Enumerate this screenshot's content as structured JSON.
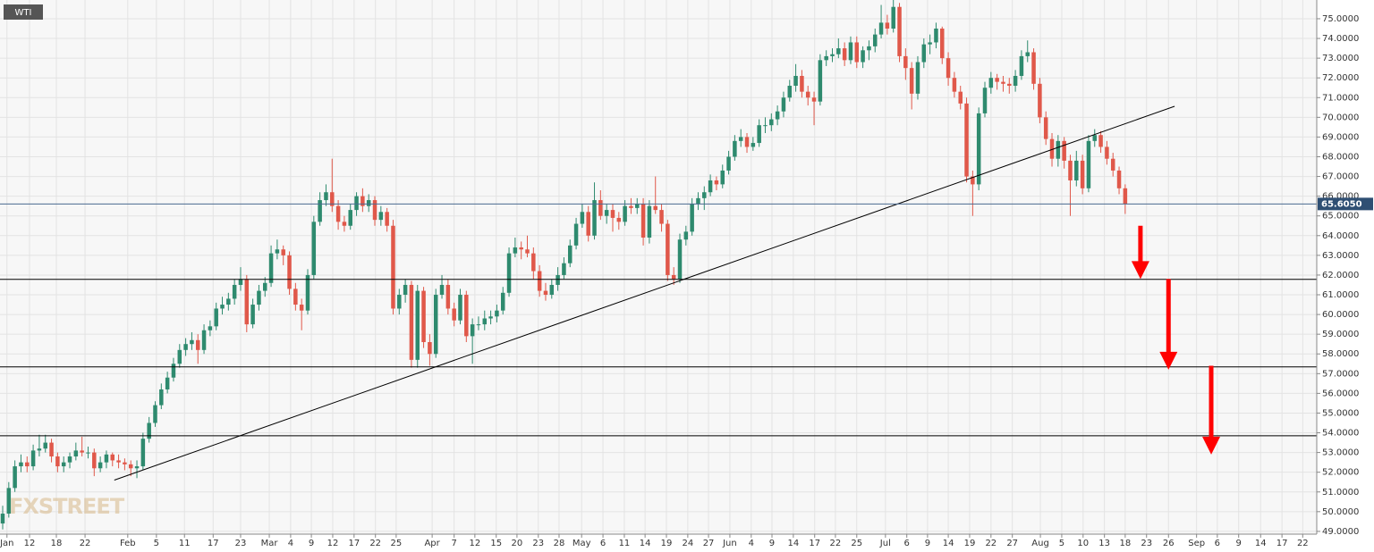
{
  "chart_data": {
    "type": "candlestick",
    "title": "WTI",
    "watermark": "FXSTREET",
    "up_color": "#2e8a6e",
    "down_color": "#e0584a",
    "grid": true,
    "xlim": [
      -0.44,
      215.4
    ],
    "ylim": [
      48.86,
      75.95
    ],
    "yticks": [
      {
        "value": 49,
        "label": "49.0000"
      },
      {
        "value": 50,
        "label": "50.0000"
      },
      {
        "value": 51,
        "label": "51.0000"
      },
      {
        "value": 52,
        "label": "52.0000"
      },
      {
        "value": 53,
        "label": "53.0000"
      },
      {
        "value": 54,
        "label": "54.0000"
      },
      {
        "value": 55,
        "label": "55.0000"
      },
      {
        "value": 56,
        "label": "56.0000"
      },
      {
        "value": 57,
        "label": "57.0000"
      },
      {
        "value": 58,
        "label": "58.0000"
      },
      {
        "value": 59,
        "label": "59.0000"
      },
      {
        "value": 60,
        "label": "60.0000"
      },
      {
        "value": 61,
        "label": "61.0000"
      },
      {
        "value": 62,
        "label": "62.0000"
      },
      {
        "value": 63,
        "label": "63.0000"
      },
      {
        "value": 64,
        "label": "64.0000"
      },
      {
        "value": 65,
        "label": "65.0000"
      },
      {
        "value": 66,
        "label": "66.0000"
      },
      {
        "value": 67,
        "label": "67.0000"
      },
      {
        "value": 68,
        "label": "68.0000"
      },
      {
        "value": 69,
        "label": "69.0000"
      },
      {
        "value": 70,
        "label": "70.0000"
      },
      {
        "value": 71,
        "label": "71.0000"
      },
      {
        "value": 72,
        "label": "72.0000"
      },
      {
        "value": 73,
        "label": "73.0000"
      },
      {
        "value": 74,
        "label": "74.0000"
      },
      {
        "value": 75,
        "label": "75.0000"
      }
    ],
    "xticks": [
      {
        "value": 0.7,
        "label": "Jan"
      },
      {
        "value": 4.4,
        "label": "12"
      },
      {
        "value": 8.8,
        "label": "18"
      },
      {
        "value": 13.5,
        "label": "22"
      },
      {
        "value": 20.5,
        "label": "Feb"
      },
      {
        "value": 25.2,
        "label": "5"
      },
      {
        "value": 29.8,
        "label": "11"
      },
      {
        "value": 34.5,
        "label": "17"
      },
      {
        "value": 39.0,
        "label": "23"
      },
      {
        "value": 43.7,
        "label": "Mar"
      },
      {
        "value": 47.2,
        "label": "4"
      },
      {
        "value": 50.6,
        "label": "9"
      },
      {
        "value": 54.1,
        "label": "12"
      },
      {
        "value": 57.6,
        "label": "17"
      },
      {
        "value": 61.1,
        "label": "22"
      },
      {
        "value": 64.5,
        "label": "25"
      },
      {
        "value": 70.4,
        "label": "Apr"
      },
      {
        "value": 74.0,
        "label": "7"
      },
      {
        "value": 77.4,
        "label": "12"
      },
      {
        "value": 80.9,
        "label": "15"
      },
      {
        "value": 84.3,
        "label": "20"
      },
      {
        "value": 87.8,
        "label": "23"
      },
      {
        "value": 91.2,
        "label": "28"
      },
      {
        "value": 94.9,
        "label": "May"
      },
      {
        "value": 98.4,
        "label": "6"
      },
      {
        "value": 101.9,
        "label": "11"
      },
      {
        "value": 105.3,
        "label": "14"
      },
      {
        "value": 108.8,
        "label": "19"
      },
      {
        "value": 112.3,
        "label": "24"
      },
      {
        "value": 115.7,
        "label": "27"
      },
      {
        "value": 119.2,
        "label": "Jun"
      },
      {
        "value": 122.7,
        "label": "4"
      },
      {
        "value": 126.1,
        "label": "9"
      },
      {
        "value": 129.6,
        "label": "14"
      },
      {
        "value": 133.1,
        "label": "17"
      },
      {
        "value": 136.5,
        "label": "22"
      },
      {
        "value": 140.0,
        "label": "25"
      },
      {
        "value": 144.7,
        "label": "Jul"
      },
      {
        "value": 148.2,
        "label": "6"
      },
      {
        "value": 151.6,
        "label": "9"
      },
      {
        "value": 155.0,
        "label": "14"
      },
      {
        "value": 158.5,
        "label": "19"
      },
      {
        "value": 162.0,
        "label": "22"
      },
      {
        "value": 165.5,
        "label": "27"
      },
      {
        "value": 170.1,
        "label": "Aug"
      },
      {
        "value": 173.6,
        "label": "5"
      },
      {
        "value": 177.1,
        "label": "10"
      },
      {
        "value": 180.6,
        "label": "13"
      },
      {
        "value": 184.0,
        "label": "18"
      },
      {
        "value": 187.5,
        "label": "23"
      },
      {
        "value": 191.1,
        "label": "26"
      },
      {
        "value": 195.7,
        "label": "Sep"
      },
      {
        "value": 199.1,
        "label": "6"
      },
      {
        "value": 202.6,
        "label": "9"
      },
      {
        "value": 206.2,
        "label": "14"
      },
      {
        "value": 209.7,
        "label": "17"
      },
      {
        "value": 213.1,
        "label": "22"
      }
    ],
    "last_price": {
      "value": 65.605,
      "label": "65.6050"
    },
    "levels": [
      61.78,
      57.34,
      53.85
    ],
    "trendline": {
      "x": [
        18.3,
        192.1
      ],
      "y": [
        51.6,
        70.56
      ]
    },
    "arrows": [
      {
        "x": 186.5,
        "from": 64.5,
        "to": 61.8
      },
      {
        "x": 191.1,
        "from": 61.8,
        "to": 57.2
      },
      {
        "x": 198.1,
        "from": 57.4,
        "to": 52.9
      }
    ],
    "candles": [
      [
        49.4,
        50.3,
        49.1,
        49.9
      ],
      [
        49.9,
        51.5,
        49.7,
        51.2
      ],
      [
        51.2,
        52.6,
        51.0,
        52.3
      ],
      [
        52.3,
        52.9,
        52.0,
        52.5
      ],
      [
        52.5,
        52.8,
        52.0,
        52.3
      ],
      [
        52.3,
        53.4,
        52.1,
        53.1
      ],
      [
        53.1,
        53.9,
        52.8,
        53.2
      ],
      [
        53.2,
        53.9,
        53.0,
        53.5
      ],
      [
        53.5,
        53.7,
        52.5,
        52.8
      ],
      [
        52.8,
        53.0,
        52.0,
        52.3
      ],
      [
        52.3,
        52.8,
        52.0,
        52.5
      ],
      [
        52.5,
        53.0,
        52.2,
        52.8
      ],
      [
        52.8,
        53.5,
        52.6,
        53.1
      ],
      [
        53.1,
        53.8,
        52.8,
        53.0
      ],
      [
        53.0,
        53.3,
        52.7,
        53.0
      ],
      [
        53.0,
        53.2,
        51.8,
        52.2
      ],
      [
        52.2,
        52.8,
        52.0,
        52.5
      ],
      [
        52.5,
        53.1,
        52.2,
        52.9
      ],
      [
        52.9,
        53.0,
        52.3,
        52.6
      ],
      [
        52.6,
        52.9,
        52.2,
        52.5
      ],
      [
        52.5,
        52.7,
        52.1,
        52.4
      ],
      [
        52.4,
        52.6,
        51.8,
        52.2
      ],
      [
        52.2,
        52.6,
        51.7,
        52.3
      ],
      [
        52.3,
        54.0,
        52.1,
        53.7
      ],
      [
        53.7,
        54.8,
        53.5,
        54.5
      ],
      [
        54.5,
        55.6,
        54.3,
        55.4
      ],
      [
        55.4,
        56.5,
        55.2,
        56.2
      ],
      [
        56.2,
        57.1,
        56.0,
        56.8
      ],
      [
        56.8,
        57.8,
        56.6,
        57.5
      ],
      [
        57.5,
        58.5,
        57.3,
        58.2
      ],
      [
        58.2,
        58.8,
        57.9,
        58.5
      ],
      [
        58.5,
        59.1,
        58.2,
        58.7
      ],
      [
        58.7,
        59.0,
        57.5,
        58.2
      ],
      [
        58.2,
        59.5,
        58.0,
        59.2
      ],
      [
        59.2,
        59.7,
        58.9,
        59.4
      ],
      [
        59.4,
        60.6,
        59.2,
        60.3
      ],
      [
        60.3,
        60.9,
        60.0,
        60.5
      ],
      [
        60.5,
        61.1,
        60.2,
        60.8
      ],
      [
        60.8,
        61.8,
        60.5,
        61.5
      ],
      [
        61.5,
        62.4,
        61.2,
        61.8
      ],
      [
        61.8,
        62.0,
        59.1,
        59.5
      ],
      [
        59.5,
        60.8,
        59.3,
        60.5
      ],
      [
        60.5,
        61.5,
        60.2,
        61.2
      ],
      [
        61.2,
        61.9,
        60.9,
        61.6
      ],
      [
        61.6,
        63.5,
        61.4,
        63.1
      ],
      [
        63.1,
        63.8,
        62.8,
        63.3
      ],
      [
        63.3,
        63.5,
        62.5,
        63.0
      ],
      [
        63.0,
        63.2,
        61.0,
        61.3
      ],
      [
        61.3,
        61.6,
        60.2,
        60.5
      ],
      [
        60.5,
        60.8,
        59.2,
        60.2
      ],
      [
        60.2,
        62.3,
        60.0,
        62.0
      ],
      [
        62.0,
        65.0,
        61.8,
        64.7
      ],
      [
        64.7,
        66.2,
        64.5,
        65.8
      ],
      [
        65.8,
        66.6,
        65.5,
        66.2
      ],
      [
        66.2,
        67.9,
        65.2,
        65.5
      ],
      [
        65.5,
        65.8,
        64.3,
        64.7
      ],
      [
        64.7,
        65.0,
        64.2,
        64.5
      ],
      [
        64.5,
        65.6,
        64.3,
        65.3
      ],
      [
        65.3,
        66.2,
        65.0,
        66.0
      ],
      [
        66.0,
        66.4,
        65.2,
        65.5
      ],
      [
        65.5,
        66.1,
        65.2,
        65.8
      ],
      [
        65.8,
        66.0,
        64.5,
        64.8
      ],
      [
        64.8,
        65.5,
        64.5,
        65.2
      ],
      [
        65.2,
        65.4,
        64.2,
        64.5
      ],
      [
        64.5,
        64.8,
        60.0,
        60.3
      ],
      [
        60.3,
        61.3,
        60.0,
        61.0
      ],
      [
        61.0,
        61.8,
        60.6,
        61.5
      ],
      [
        61.5,
        61.7,
        57.3,
        57.7
      ],
      [
        57.7,
        61.5,
        57.3,
        61.2
      ],
      [
        61.2,
        61.4,
        58.3,
        58.6
      ],
      [
        58.6,
        59.0,
        57.4,
        58.0
      ],
      [
        58.0,
        61.3,
        57.8,
        61.0
      ],
      [
        61.0,
        62.0,
        60.8,
        61.5
      ],
      [
        61.5,
        61.8,
        60.0,
        60.3
      ],
      [
        60.3,
        60.6,
        59.4,
        59.7
      ],
      [
        59.7,
        61.3,
        59.5,
        61.0
      ],
      [
        61.0,
        61.2,
        58.6,
        58.9
      ],
      [
        58.9,
        59.8,
        57.5,
        59.5
      ],
      [
        59.5,
        59.9,
        59.2,
        59.5
      ],
      [
        59.5,
        60.2,
        59.2,
        59.8
      ],
      [
        59.8,
        60.2,
        59.5,
        59.9
      ],
      [
        59.9,
        60.5,
        59.6,
        60.2
      ],
      [
        60.2,
        61.4,
        60.0,
        61.1
      ],
      [
        61.1,
        63.4,
        60.9,
        63.1
      ],
      [
        63.1,
        63.9,
        62.9,
        63.4
      ],
      [
        63.4,
        63.7,
        62.8,
        63.3
      ],
      [
        63.3,
        64.0,
        62.9,
        63.1
      ],
      [
        63.1,
        63.4,
        61.8,
        62.2
      ],
      [
        62.2,
        62.5,
        60.9,
        61.2
      ],
      [
        61.2,
        61.6,
        60.7,
        61.0
      ],
      [
        61.0,
        61.8,
        60.8,
        61.5
      ],
      [
        61.5,
        62.4,
        61.2,
        62.0
      ],
      [
        62.0,
        62.9,
        61.8,
        62.6
      ],
      [
        62.6,
        63.8,
        62.4,
        63.5
      ],
      [
        63.5,
        64.9,
        63.3,
        64.6
      ],
      [
        64.6,
        65.6,
        64.4,
        65.2
      ],
      [
        65.2,
        65.5,
        63.7,
        64.0
      ],
      [
        64.0,
        66.7,
        63.8,
        65.8
      ],
      [
        65.8,
        66.3,
        64.8,
        65.0
      ],
      [
        65.0,
        65.6,
        64.6,
        65.3
      ],
      [
        65.3,
        65.6,
        64.2,
        64.9
      ],
      [
        64.9,
        65.2,
        64.3,
        64.7
      ],
      [
        64.7,
        65.8,
        64.5,
        65.5
      ],
      [
        65.5,
        65.9,
        65.1,
        65.4
      ],
      [
        65.4,
        65.9,
        65.1,
        65.6
      ],
      [
        65.6,
        65.9,
        63.5,
        63.9
      ],
      [
        63.9,
        65.8,
        63.6,
        65.5
      ],
      [
        65.5,
        67.0,
        65.1,
        65.3
      ],
      [
        65.3,
        65.6,
        64.2,
        64.6
      ],
      [
        64.6,
        64.8,
        61.7,
        62.0
      ],
      [
        62.0,
        62.4,
        61.5,
        61.8
      ],
      [
        61.8,
        64.1,
        61.6,
        63.8
      ],
      [
        63.8,
        64.5,
        63.5,
        64.2
      ],
      [
        64.2,
        65.9,
        64.0,
        65.6
      ],
      [
        65.6,
        66.2,
        65.3,
        65.9
      ],
      [
        65.9,
        66.5,
        65.3,
        66.2
      ],
      [
        66.2,
        67.1,
        66.0,
        66.8
      ],
      [
        66.8,
        67.0,
        66.3,
        66.6
      ],
      [
        66.6,
        67.6,
        66.4,
        67.3
      ],
      [
        67.3,
        68.3,
        67.1,
        68.0
      ],
      [
        68.0,
        69.1,
        67.8,
        68.8
      ],
      [
        68.8,
        69.4,
        68.5,
        69.0
      ],
      [
        69.0,
        69.2,
        68.2,
        68.5
      ],
      [
        68.5,
        69.0,
        68.3,
        68.7
      ],
      [
        68.7,
        69.9,
        68.5,
        69.6
      ],
      [
        69.6,
        70.0,
        69.2,
        69.6
      ],
      [
        69.6,
        70.2,
        69.3,
        69.9
      ],
      [
        69.9,
        70.6,
        69.6,
        70.3
      ],
      [
        70.3,
        71.3,
        70.0,
        71.0
      ],
      [
        71.0,
        71.9,
        70.8,
        71.6
      ],
      [
        71.6,
        72.7,
        71.3,
        72.1
      ],
      [
        72.1,
        72.4,
        71.0,
        71.3
      ],
      [
        71.3,
        71.6,
        70.6,
        71.0
      ],
      [
        71.0,
        71.3,
        69.6,
        70.8
      ],
      [
        70.8,
        73.2,
        70.6,
        72.9
      ],
      [
        72.9,
        73.4,
        72.6,
        73.1
      ],
      [
        73.1,
        73.5,
        72.8,
        73.2
      ],
      [
        73.2,
        74.0,
        73.0,
        73.5
      ],
      [
        73.5,
        73.8,
        72.6,
        72.9
      ],
      [
        72.9,
        74.1,
        72.7,
        73.8
      ],
      [
        73.8,
        74.1,
        72.5,
        72.8
      ],
      [
        72.8,
        73.6,
        72.5,
        73.4
      ],
      [
        73.4,
        73.9,
        72.9,
        73.6
      ],
      [
        73.6,
        74.5,
        73.3,
        74.2
      ],
      [
        74.2,
        75.7,
        74.0,
        74.8
      ],
      [
        74.8,
        75.2,
        74.2,
        74.5
      ],
      [
        74.5,
        76.0,
        74.3,
        75.6
      ],
      [
        75.6,
        75.8,
        72.8,
        73.1
      ],
      [
        73.1,
        73.5,
        71.9,
        72.5
      ],
      [
        72.5,
        72.8,
        70.4,
        71.2
      ],
      [
        71.2,
        73.1,
        70.9,
        72.8
      ],
      [
        72.8,
        74.0,
        72.5,
        73.7
      ],
      [
        73.7,
        74.2,
        73.2,
        73.8
      ],
      [
        73.8,
        74.8,
        73.5,
        74.5
      ],
      [
        74.5,
        74.6,
        72.7,
        73.0
      ],
      [
        73.0,
        73.3,
        71.6,
        72.0
      ],
      [
        72.0,
        72.3,
        71.0,
        71.3
      ],
      [
        71.3,
        71.6,
        70.4,
        70.7
      ],
      [
        70.7,
        71.0,
        66.7,
        67.0
      ],
      [
        67.0,
        67.3,
        65.0,
        66.6
      ],
      [
        66.6,
        70.5,
        66.3,
        70.2
      ],
      [
        70.2,
        71.8,
        70.0,
        71.5
      ],
      [
        71.5,
        72.3,
        71.2,
        72.0
      ],
      [
        72.0,
        72.2,
        71.4,
        71.8
      ],
      [
        71.8,
        72.1,
        71.3,
        71.7
      ],
      [
        71.7,
        72.0,
        71.2,
        71.6
      ],
      [
        71.6,
        72.4,
        71.3,
        72.1
      ],
      [
        72.1,
        73.4,
        71.9,
        73.1
      ],
      [
        73.1,
        73.9,
        72.8,
        73.3
      ],
      [
        73.3,
        73.5,
        71.4,
        71.7
      ],
      [
        71.7,
        72.0,
        69.7,
        70.0
      ],
      [
        70.0,
        70.3,
        68.6,
        68.9
      ],
      [
        68.9,
        69.2,
        67.5,
        67.9
      ],
      [
        67.9,
        69.1,
        67.5,
        68.8
      ],
      [
        68.8,
        69.0,
        67.4,
        67.8
      ],
      [
        67.8,
        68.1,
        65.0,
        66.8
      ],
      [
        66.8,
        68.3,
        66.5,
        67.8
      ],
      [
        67.8,
        68.1,
        66.1,
        66.4
      ],
      [
        66.4,
        69.1,
        66.2,
        68.8
      ],
      [
        68.8,
        69.4,
        68.5,
        69.1
      ],
      [
        69.1,
        69.3,
        68.2,
        68.5
      ],
      [
        68.5,
        68.8,
        67.6,
        67.9
      ],
      [
        67.9,
        68.2,
        67.0,
        67.3
      ],
      [
        67.3,
        67.5,
        66.1,
        66.4
      ],
      [
        66.4,
        66.6,
        65.1,
        65.6
      ]
    ]
  }
}
